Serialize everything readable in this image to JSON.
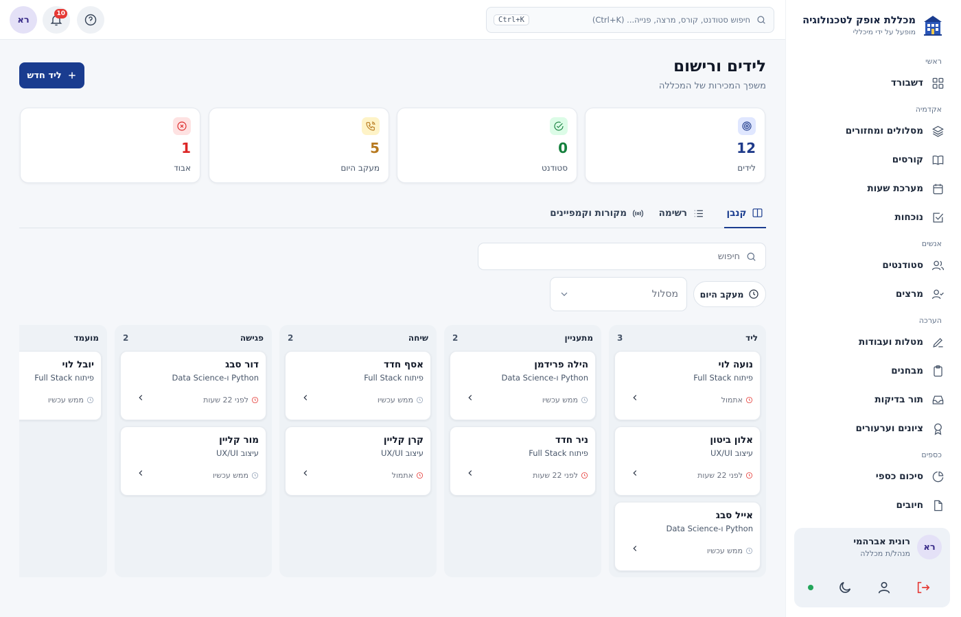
{
  "brand": {
    "title": "מכללת אופק לטכנולוגיה",
    "subtitle": "מופעל על ידי מיכללי"
  },
  "sidebar": {
    "sections": [
      {
        "label": "ראשי",
        "items": [
          {
            "label": "דשבורד",
            "icon": "grid-icon"
          }
        ]
      },
      {
        "label": "אקדמיה",
        "items": [
          {
            "label": "מסלולים ומחזורים",
            "icon": "layers-icon"
          },
          {
            "label": "קורסים",
            "icon": "book-icon"
          },
          {
            "label": "מערכת שעות",
            "icon": "calendar-icon"
          },
          {
            "label": "נוכחות",
            "icon": "checkbox-icon"
          }
        ]
      },
      {
        "label": "אנשים",
        "items": [
          {
            "label": "סטודנטים",
            "icon": "users-icon"
          },
          {
            "label": "מרצים",
            "icon": "user-check-icon"
          }
        ]
      },
      {
        "label": "הערכה",
        "items": [
          {
            "label": "מטלות ועבודות",
            "icon": "pencil-icon"
          },
          {
            "label": "מבחנים",
            "icon": "clipboard-icon"
          },
          {
            "label": "תור בדיקות",
            "icon": "inbox-icon"
          },
          {
            "label": "ציונים וערעורים",
            "icon": "award-icon"
          }
        ]
      },
      {
        "label": "כספים",
        "items": [
          {
            "label": "סיכום כספי",
            "icon": "pie-chart-icon"
          },
          {
            "label": "חיובים",
            "icon": "file-icon"
          }
        ]
      }
    ]
  },
  "user": {
    "initials": "רא",
    "name": "רונית אברהמי",
    "role": "מנהל/ת מכללה",
    "online_color": "#22a55a"
  },
  "topbar": {
    "search_placeholder": "חיפוש סטודנט, קורס, מרצה, פנייה... (Ctrl+K)",
    "shortcut": "Ctrl+K",
    "notifications_count": "10",
    "avatar_initials": "רא"
  },
  "page": {
    "title": "לידים ורישום",
    "subtitle": "משפך המכירות של המכללה",
    "new_lead_label": "ליד חדש",
    "accent": "#1a3c8f"
  },
  "stats": [
    {
      "label": "לידים",
      "value": "12",
      "color": "#1e3a8a",
      "bg": "#e0e7ff",
      "icon": "target-icon"
    },
    {
      "label": "סטודנט",
      "value": "0",
      "color": "#15803d",
      "bg": "#dcfce7",
      "icon": "check-circle-icon"
    },
    {
      "label": "מעקב היום",
      "value": "5",
      "color": "#b7791f",
      "bg": "#fef3c7",
      "icon": "phone-icon"
    },
    {
      "label": "אבוד",
      "value": "1",
      "color": "#dc2626",
      "bg": "#fee2e2",
      "icon": "x-circle-icon"
    }
  ],
  "tabs": [
    {
      "label": "קנבן",
      "icon": "kanban-icon",
      "active": true
    },
    {
      "label": "רשימה",
      "icon": "list-icon",
      "active": false
    },
    {
      "label": "מקורות וקמפיינים",
      "icon": "broadcast-icon",
      "active": false
    }
  ],
  "filters": {
    "search_placeholder": "חיפוש",
    "today_chip": "מעקב היום",
    "track_select": "מסלול"
  },
  "kanban": [
    {
      "title": "ליד",
      "count": "3",
      "cards": [
        {
          "name": "נועה לוי",
          "track": "פיתוח Full Stack",
          "time": "אתמול",
          "urgent": true
        },
        {
          "name": "אלון ביטון",
          "track": "עיצוב UX/UI",
          "time": "לפני 22 שעות",
          "urgent": true
        },
        {
          "name": "אייל סבג",
          "track": "Python ו-Data Science",
          "time": "ממש עכשיו",
          "urgent": false
        }
      ]
    },
    {
      "title": "מתעניין",
      "count": "2",
      "cards": [
        {
          "name": "הילה פרידמן",
          "track": "Python ו-Data Science",
          "time": "ממש עכשיו",
          "urgent": false
        },
        {
          "name": "ניר חדד",
          "track": "פיתוח Full Stack",
          "time": "לפני 22 שעות",
          "urgent": true
        }
      ]
    },
    {
      "title": "שיחה",
      "count": "2",
      "cards": [
        {
          "name": "אסף חדד",
          "track": "פיתוח Full Stack",
          "time": "ממש עכשיו",
          "urgent": false
        },
        {
          "name": "קרן קליין",
          "track": "עיצוב UX/UI",
          "time": "אתמול",
          "urgent": true
        }
      ]
    },
    {
      "title": "פגישה",
      "count": "2",
      "cards": [
        {
          "name": "דור סבג",
          "track": "Python ו-Data Science",
          "time": "לפני 22 שעות",
          "urgent": true
        },
        {
          "name": "מור קליין",
          "track": "עיצוב UX/UI",
          "time": "ממש עכשיו",
          "urgent": false
        }
      ]
    },
    {
      "title": "מועמד",
      "count": "",
      "cards": [
        {
          "name": "יובל לוי",
          "track": "פיתוח Full Stack",
          "time": "ממש עכשיו",
          "urgent": false
        }
      ]
    }
  ]
}
